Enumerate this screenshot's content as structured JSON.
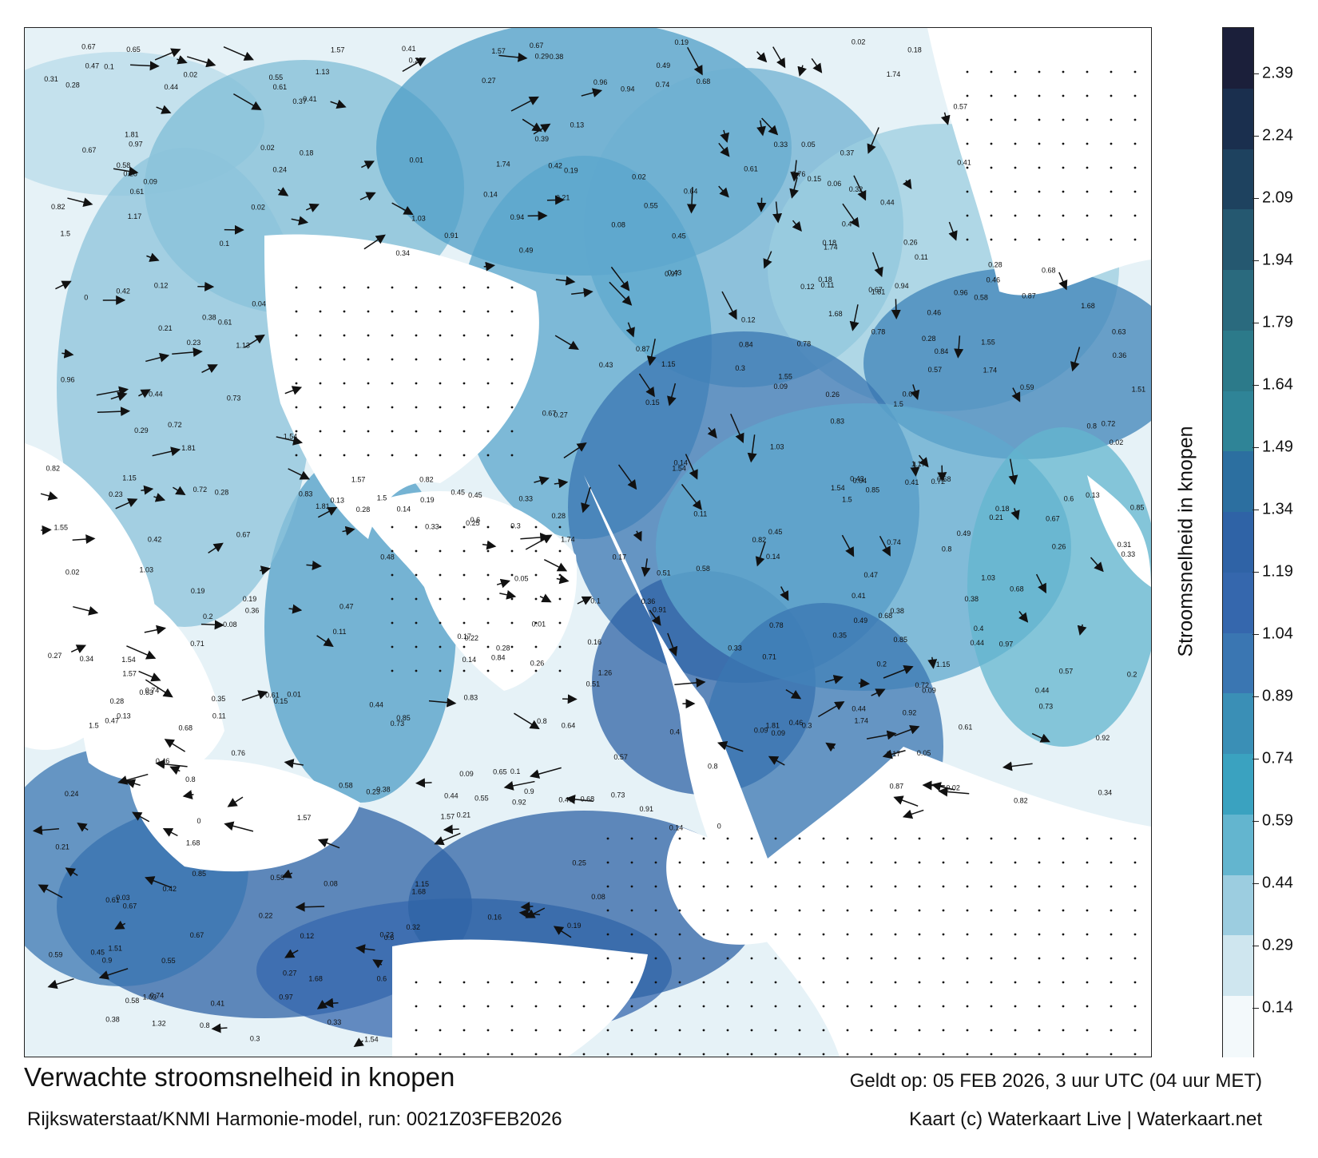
{
  "map": {
    "footer_title": "Verwachte stroomsnelheid in knopen",
    "footer_source": "Rijkswaterstaat/KNMI Harmonie-model, run: 0021Z03FEB2026",
    "footer_valid": "Geldt op: 05 FEB 2026, 3 uur UTC (04 uur MET)",
    "footer_credit": "Kaart (c) Waterkaart Live | Waterkaart.net",
    "sample_values": [
      "0.16",
      "0.15",
      "0.14",
      "0.04",
      "0.05",
      "0.32",
      "0.31",
      "0.3",
      "0.29",
      "0.33",
      "0.27",
      "0.25",
      "0.24",
      "0.44",
      "0.63",
      "0.35",
      "0.72",
      "0.59",
      "0.71",
      "0.26",
      "0.09",
      "0.06",
      "0.02",
      "0.13",
      "0.08",
      "0.12",
      "0.11",
      "0.1",
      "0.07",
      "0.03",
      "0.55",
      "0.51",
      "0.91",
      "0.61",
      "0.83",
      "0.73",
      "0.74",
      "0.65",
      "0.68",
      "1.32",
      "0.92",
      "0.64",
      "0.67",
      "0.42",
      "0.36",
      "0.84",
      "0.8",
      "0.78",
      "0.85",
      "0.76",
      "0.96",
      "1.03",
      "1.17",
      "1.15",
      "1.13",
      "1.26",
      "1.5",
      "1.51",
      "1.54",
      "1.55",
      "1.57",
      "1.68",
      "1.74",
      "1.81",
      "0.9",
      "0.94",
      "0.97",
      "0.87",
      "0.82",
      "0.6",
      "0.58",
      "0.57",
      "0.49",
      "0.48",
      "0.47",
      "0.46",
      "0.45",
      "0.43",
      "0.41",
      "0.4",
      "0.39",
      "0.38",
      "0.37",
      "0.34",
      "0.28",
      "0.23",
      "0.22",
      "0.21",
      "0.2",
      "0.19",
      "0.18",
      "0.17",
      "0.01",
      "0"
    ]
  },
  "legend": {
    "title": "Stroomsnelheid in knopen",
    "ticks": [
      "2.39",
      "2.24",
      "2.09",
      "1.94",
      "1.79",
      "1.64",
      "1.49",
      "1.34",
      "1.19",
      "1.04",
      "0.89",
      "0.74",
      "0.59",
      "0.44",
      "0.29",
      "0.14"
    ],
    "colors": [
      "#1b1f3a",
      "#1a2f4e",
      "#1e425f",
      "#255870",
      "#2a6a7e",
      "#2c7a8a",
      "#2f8497",
      "#2c6fa0",
      "#2f63a6",
      "#3567ad",
      "#3a76b2",
      "#3a8fb6",
      "#3aa2c0",
      "#63b5cf",
      "#9ccde0",
      "#cfe6ef",
      "#f3f9fb"
    ]
  }
}
